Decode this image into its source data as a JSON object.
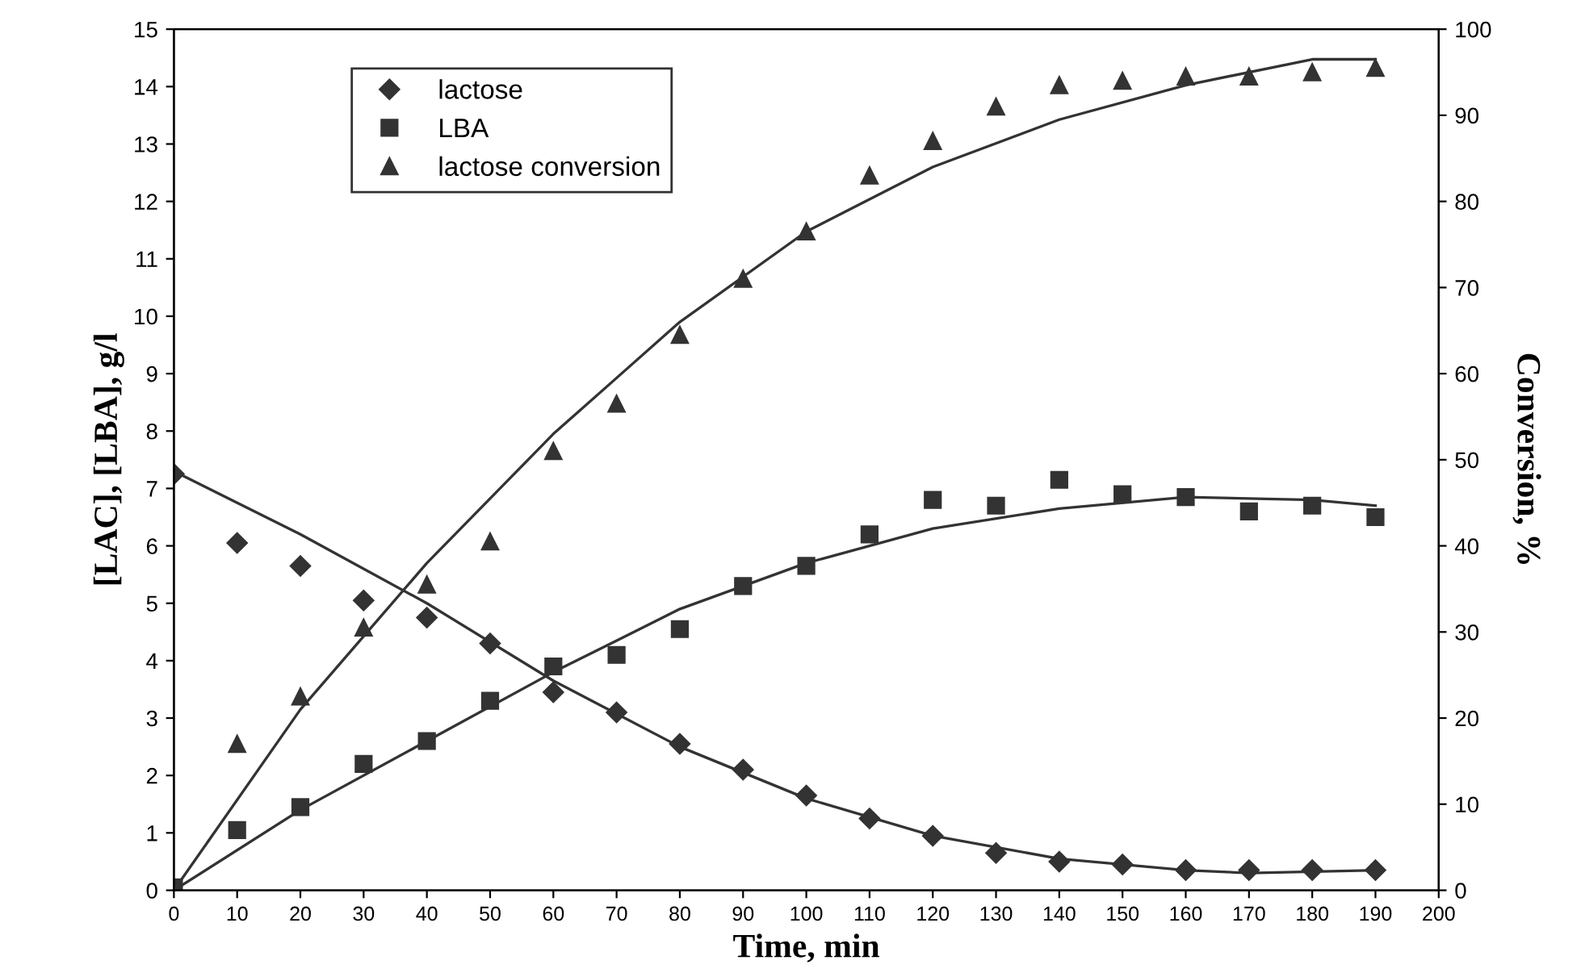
{
  "chart_data": {
    "type": "scatter",
    "xlabel": "Time, min",
    "ylabel": "[LAC], [LBA], g/l",
    "y2label": "Conversion, %",
    "xlim": [
      0,
      200
    ],
    "xticks": [
      0,
      10,
      20,
      30,
      40,
      50,
      60,
      70,
      80,
      90,
      100,
      110,
      120,
      130,
      140,
      150,
      160,
      170,
      180,
      190,
      200
    ],
    "ylim": [
      0,
      15
    ],
    "yticks": [
      0,
      1,
      2,
      3,
      4,
      5,
      6,
      7,
      8,
      9,
      10,
      11,
      12,
      13,
      14,
      15
    ],
    "y2lim": [
      0,
      100
    ],
    "y2ticks": [
      0,
      10,
      20,
      30,
      40,
      50,
      60,
      70,
      80,
      90,
      100
    ],
    "grid": false,
    "legend": "top left",
    "x": [
      0,
      10,
      20,
      30,
      40,
      50,
      60,
      70,
      80,
      90,
      100,
      110,
      120,
      130,
      140,
      150,
      160,
      170,
      180,
      190
    ],
    "series": [
      {
        "name": "lactose",
        "color": "#333333",
        "marker": "diamond",
        "values": [
          7.25,
          6.05,
          5.65,
          5.05,
          4.75,
          4.3,
          3.45,
          3.1,
          2.55,
          2.1,
          1.65,
          1.25,
          0.95,
          0.65,
          0.5,
          0.45,
          0.35,
          0.35,
          0.35,
          0.35
        ]
      },
      {
        "name": "LBA",
        "color": "#333333",
        "marker": "square",
        "values": [
          0.05,
          1.05,
          1.45,
          2.2,
          2.6,
          3.3,
          3.9,
          4.1,
          4.55,
          5.3,
          5.65,
          6.2,
          6.8,
          6.7,
          7.15,
          6.9,
          6.85,
          6.6,
          6.7,
          6.5
        ]
      },
      {
        "name": "lactose conversion",
        "color": "#333333",
        "marker": "triangle",
        "axis": "y2",
        "values": [
          null,
          17,
          22.5,
          30.5,
          35.5,
          40.5,
          51,
          56.5,
          64.5,
          71,
          76.5,
          83,
          87,
          91,
          93.5,
          94,
          94.5,
          94.5,
          95,
          95.5
        ]
      },
      {
        "type": "line",
        "color": "#333333",
        "marker": "none",
        "line_style": "solid",
        "x": [
          0,
          20,
          40,
          60,
          80,
          100,
          120,
          140,
          160,
          170,
          190
        ],
        "values": [
          7.3,
          6.2,
          5.0,
          3.65,
          2.5,
          1.6,
          0.95,
          0.55,
          0.35,
          0.3,
          0.35
        ]
      },
      {
        "type": "line",
        "color": "#333333",
        "marker": "none",
        "line_style": "solid",
        "x": [
          0,
          20,
          40,
          60,
          80,
          100,
          120,
          140,
          160,
          180,
          190
        ],
        "values": [
          0,
          1.4,
          2.6,
          3.8,
          4.9,
          5.7,
          6.3,
          6.65,
          6.85,
          6.8,
          6.7
        ]
      },
      {
        "type": "line",
        "color": "#333333",
        "marker": "none",
        "line_style": "solid",
        "axis": "y2",
        "x": [
          0,
          20,
          40,
          60,
          80,
          100,
          120,
          140,
          160,
          180,
          190
        ],
        "values": [
          0,
          21,
          38,
          53,
          66,
          76.5,
          84,
          89.5,
          93.5,
          96.5,
          96.5
        ]
      }
    ]
  }
}
